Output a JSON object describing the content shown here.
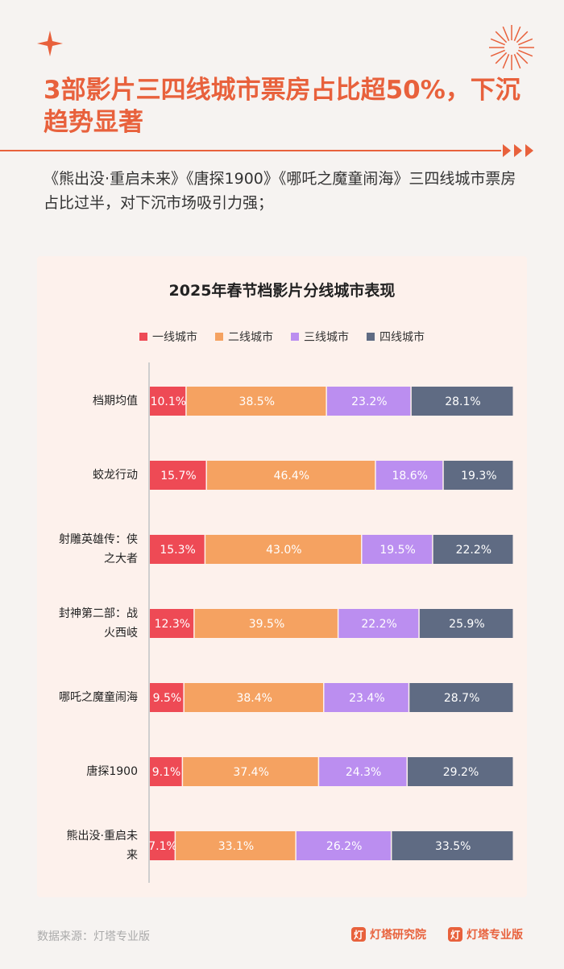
{
  "headline": "3部影片三四线城市票房占比超50%，下沉趋势显著",
  "subtitle": "《熊出没·重启未来》《唐探1900》《哪吒之魔童闹海》三四线城市票房占比过半，对下沉市场吸引力强；",
  "chart_data": {
    "type": "bar",
    "orientation": "horizontal",
    "stacked": true,
    "percent": true,
    "title": "2025年春节档影片分线城市表现",
    "legend_position": "top",
    "categories": [
      [
        "档期均值"
      ],
      [
        "蛟龙行动"
      ],
      [
        "射雕英雄传：侠",
        "之大者"
      ],
      [
        "封神第二部：战",
        "火西岐"
      ],
      [
        "哪吒之魔童闹海"
      ],
      [
        "唐探1900"
      ],
      [
        "熊出没·重启未",
        "来"
      ]
    ],
    "series": [
      {
        "name": "一线城市",
        "color": "#ee4a55",
        "values": [
          10.1,
          15.7,
          15.3,
          12.3,
          9.5,
          9.1,
          7.1
        ]
      },
      {
        "name": "二线城市",
        "color": "#f5a261",
        "values": [
          38.5,
          46.4,
          43.0,
          39.5,
          38.4,
          37.4,
          33.1
        ]
      },
      {
        "name": "三线城市",
        "color": "#bb8ef0",
        "values": [
          23.2,
          18.6,
          19.5,
          22.2,
          23.4,
          24.3,
          26.2
        ]
      },
      {
        "name": "四线城市",
        "color": "#5f6b83",
        "values": [
          28.1,
          19.3,
          22.2,
          25.9,
          28.7,
          29.2,
          33.5
        ]
      }
    ],
    "data_labels": [
      [
        "10.1%",
        "15.7%",
        "15.3%",
        "12.3%",
        "9.5%",
        "9.1%",
        "7.1%"
      ],
      [
        "38.5%",
        "46.4%",
        "43.0%",
        "39.5%",
        "38.4%",
        "37.4%",
        "33.1%"
      ],
      [
        "23.2%",
        "18.6%",
        "19.5%",
        "22.2%",
        "23.4%",
        "24.3%",
        "26.2%"
      ],
      [
        "28.1%",
        "19.3%",
        "22.2%",
        "25.9%",
        "28.7%",
        "29.2%",
        "33.5%"
      ]
    ]
  },
  "footer": {
    "source": "数据来源：灯塔专业版",
    "logo1": "灯塔研究院",
    "logo2": "灯塔专业版"
  },
  "colors": {
    "accent": "#e8613c",
    "card_bg": "#fdf1ec"
  }
}
